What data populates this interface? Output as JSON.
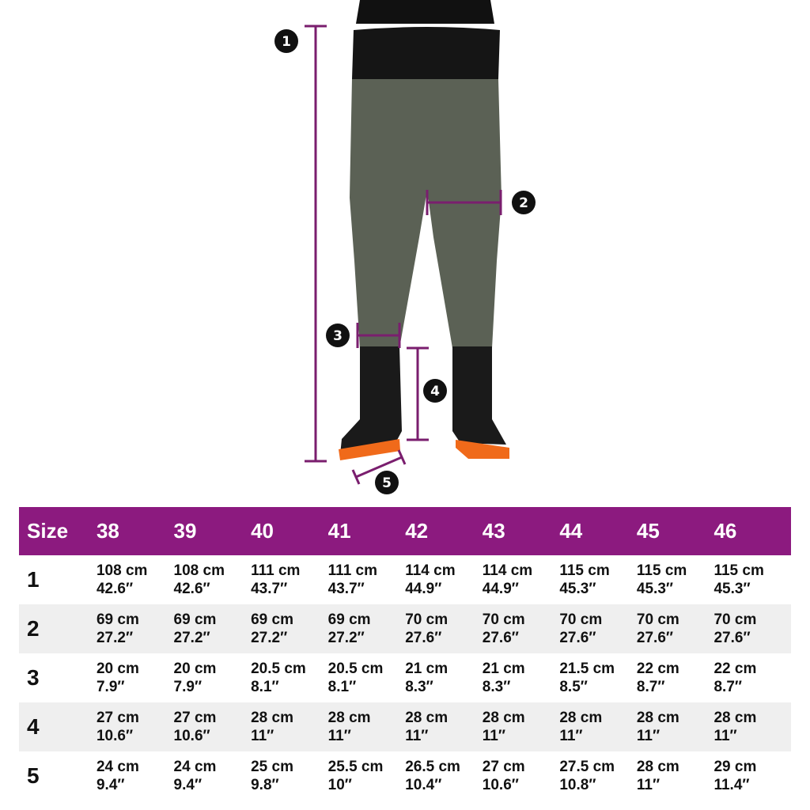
{
  "colors": {
    "accent": "#8c1a7f",
    "row_alt": "#efefef",
    "marker": "#7a1e6e"
  },
  "markers": [
    "1",
    "2",
    "3",
    "4",
    "5"
  ],
  "table": {
    "header": [
      "Size",
      "38",
      "39",
      "40",
      "41",
      "42",
      "43",
      "44",
      "45",
      "46"
    ],
    "rows": [
      {
        "label": "1",
        "cells": [
          [
            "108 cm",
            "42.6″"
          ],
          [
            "108 cm",
            "42.6″"
          ],
          [
            "111 cm",
            "43.7″"
          ],
          [
            "111 cm",
            "43.7″"
          ],
          [
            "114 cm",
            "44.9″"
          ],
          [
            "114 cm",
            "44.9″"
          ],
          [
            "115 cm",
            "45.3″"
          ],
          [
            "115 cm",
            "45.3″"
          ],
          [
            "115 cm",
            "45.3″"
          ]
        ]
      },
      {
        "label": "2",
        "cells": [
          [
            "69 cm",
            "27.2″"
          ],
          [
            "69 cm",
            "27.2″"
          ],
          [
            "69 cm",
            "27.2″"
          ],
          [
            "69 cm",
            "27.2″"
          ],
          [
            "70 cm",
            "27.6″"
          ],
          [
            "70 cm",
            "27.6″"
          ],
          [
            "70 cm",
            "27.6″"
          ],
          [
            "70 cm",
            "27.6″"
          ],
          [
            "70 cm",
            "27.6″"
          ]
        ]
      },
      {
        "label": "3",
        "cells": [
          [
            "20 cm",
            "7.9″"
          ],
          [
            "20 cm",
            "7.9″"
          ],
          [
            "20.5 cm",
            "8.1″"
          ],
          [
            "20.5 cm",
            "8.1″"
          ],
          [
            "21 cm",
            "8.3″"
          ],
          [
            "21 cm",
            "8.3″"
          ],
          [
            "21.5 cm",
            "8.5″"
          ],
          [
            "22 cm",
            "8.7″"
          ],
          [
            "22 cm",
            "8.7″"
          ]
        ]
      },
      {
        "label": "4",
        "cells": [
          [
            "27 cm",
            "10.6″"
          ],
          [
            "27 cm",
            "10.6″"
          ],
          [
            "28 cm",
            "11″"
          ],
          [
            "28 cm",
            "11″"
          ],
          [
            "28 cm",
            "11″"
          ],
          [
            "28 cm",
            "11″"
          ],
          [
            "28 cm",
            "11″"
          ],
          [
            "28 cm",
            "11″"
          ],
          [
            "28 cm",
            "11″"
          ]
        ]
      },
      {
        "label": "5",
        "cells": [
          [
            "24 cm",
            "9.4″"
          ],
          [
            "24 cm",
            "9.4″"
          ],
          [
            "25 cm",
            "9.8″"
          ],
          [
            "25.5 cm",
            "10″"
          ],
          [
            "26.5 cm",
            "10.4″"
          ],
          [
            "27 cm",
            "10.6″"
          ],
          [
            "27.5 cm",
            "10.8″"
          ],
          [
            "28 cm",
            "11″"
          ],
          [
            "29 cm",
            "11.4″"
          ]
        ]
      }
    ]
  }
}
